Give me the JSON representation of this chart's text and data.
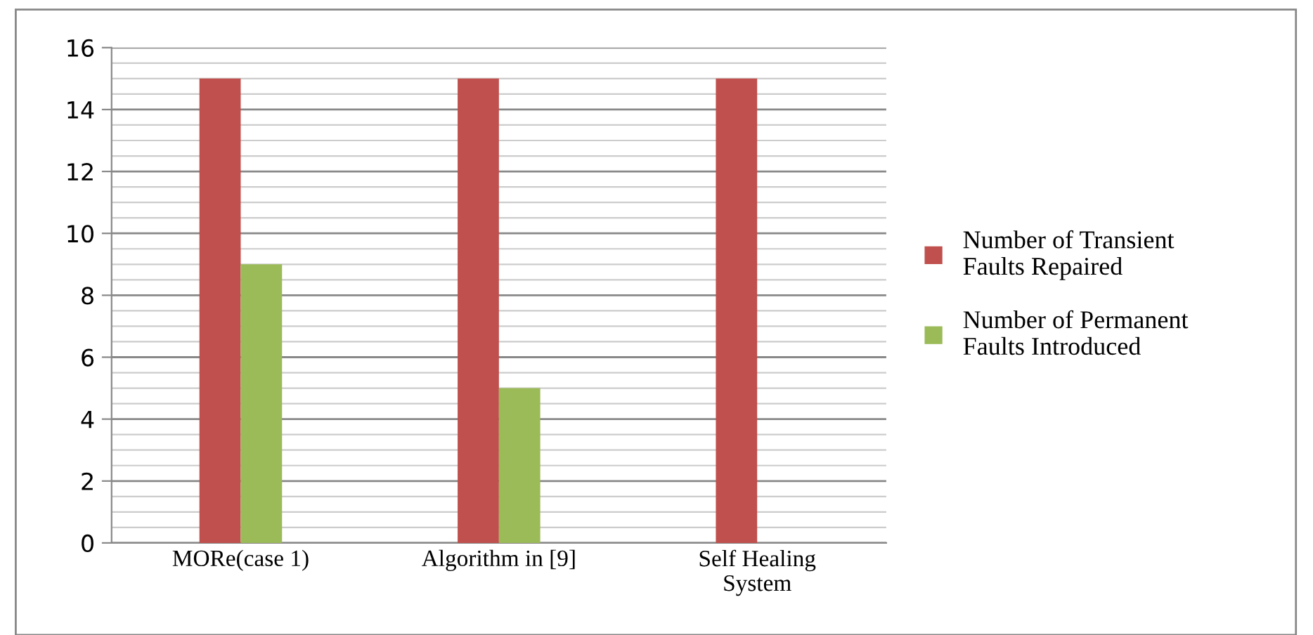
{
  "chart_data": {
    "type": "bar",
    "categories": [
      "MORe(case 1)",
      "Algorithm in [9]",
      "Self Healing\nSystem"
    ],
    "series": [
      {
        "name": "Number of Transient\nFaults Repaired",
        "color": "#c0504d",
        "values": [
          15,
          15,
          15
        ]
      },
      {
        "name": "Number of Permanent\nFaults Introduced",
        "color": "#9bbb59",
        "values": [
          9,
          5,
          0
        ]
      }
    ],
    "ylim": [
      0,
      16
    ],
    "yticks": [
      0,
      2,
      4,
      6,
      8,
      10,
      12,
      14,
      16
    ],
    "grid": "y",
    "legend": "right"
  }
}
